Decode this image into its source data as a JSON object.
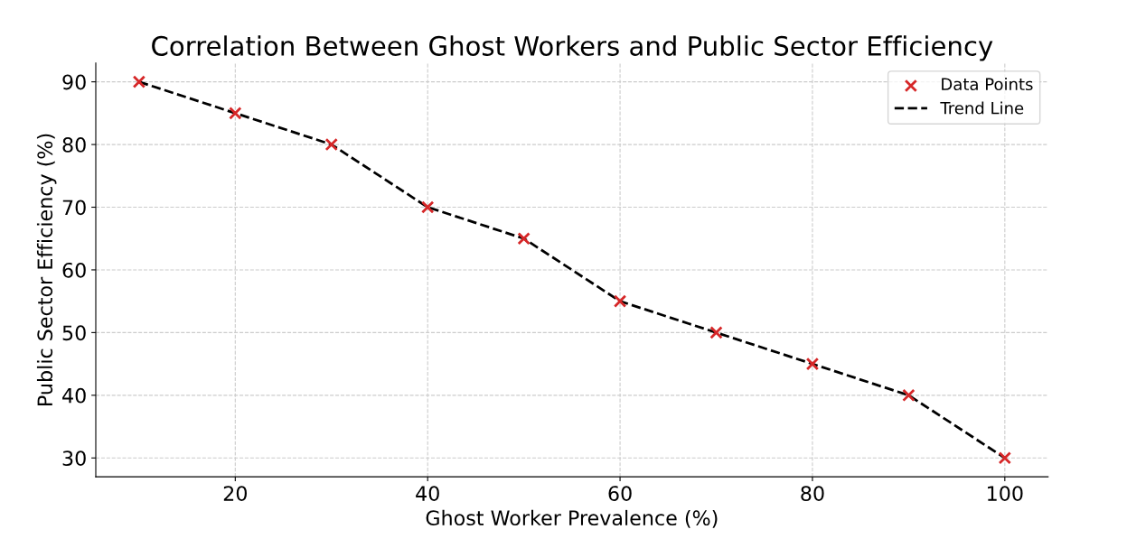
{
  "chart_data": {
    "type": "scatter",
    "title": "Correlation Between Ghost Workers and Public Sector Efficiency",
    "xlabel": "Ghost Worker Prevalence (%)",
    "ylabel": "Public Sector Efficiency (%)",
    "x": [
      10,
      20,
      30,
      40,
      50,
      60,
      70,
      80,
      90,
      100
    ],
    "series": [
      {
        "name": "Data Points",
        "color": "#d62728",
        "marker": "cross",
        "values": [
          90,
          85,
          80,
          70,
          65,
          55,
          50,
          45,
          40,
          30
        ]
      },
      {
        "name": "Trend Line",
        "type": "line",
        "color": "#000000",
        "line_style": "dashed",
        "marker": "none",
        "values": [
          90,
          85,
          80,
          70,
          65,
          55,
          50,
          45,
          40,
          30
        ]
      }
    ],
    "xlim": [
      5.5,
      104.5
    ],
    "ylim": [
      27,
      93
    ],
    "xticks": [
      20,
      40,
      60,
      80,
      100
    ],
    "yticks": [
      30,
      40,
      50,
      60,
      70,
      80,
      90
    ],
    "grid": true,
    "legend": "top right"
  }
}
